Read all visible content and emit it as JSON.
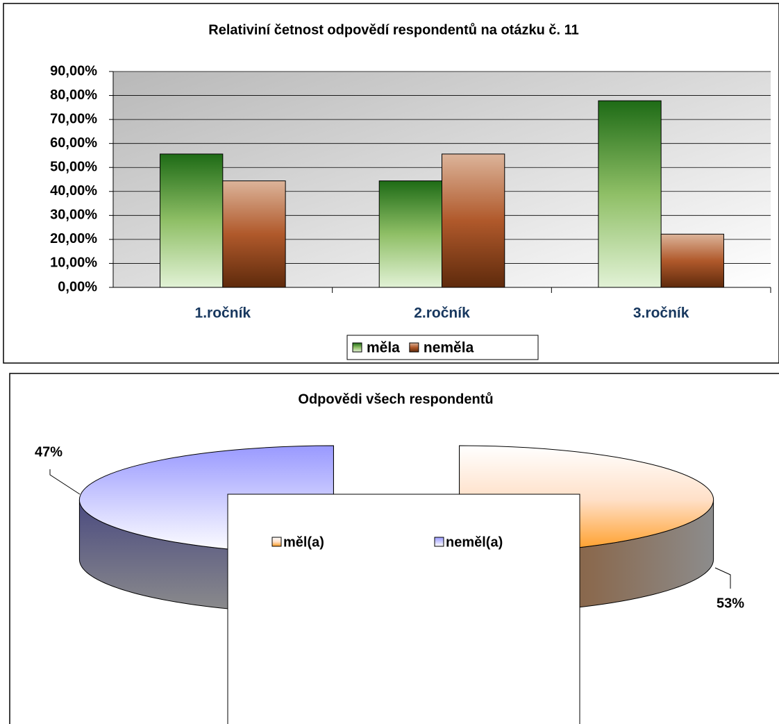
{
  "chart_data": [
    {
      "type": "bar",
      "title": "Relativiní četnost odpovědí respondentů na otázku č. 11",
      "categories": [
        "1.ročník",
        "2.ročník",
        "3.ročník"
      ],
      "series": [
        {
          "name": "měla",
          "color": "#2e7d22",
          "values": [
            55.6,
            44.4,
            77.8
          ]
        },
        {
          "name": "neměla",
          "color": "#a0522d",
          "values": [
            44.4,
            55.6,
            22.2
          ]
        }
      ],
      "ylim": [
        0,
        90
      ],
      "yticks": [
        {
          "value": 0,
          "label": "0,00%"
        },
        {
          "value": 10,
          "label": "10,00%"
        },
        {
          "value": 20,
          "label": "20,00%"
        },
        {
          "value": 30,
          "label": "30,00%"
        },
        {
          "value": 40,
          "label": "40,00%"
        },
        {
          "value": 50,
          "label": "50,00%"
        },
        {
          "value": 60,
          "label": "60,00%"
        },
        {
          "value": 70,
          "label": "70,00%"
        },
        {
          "value": 80,
          "label": "80,00%"
        },
        {
          "value": 90,
          "label": "90,00%"
        }
      ],
      "grid": true,
      "legend": "bottom"
    },
    {
      "type": "pie",
      "title": "Odpovědi všech respondentů",
      "categories": [
        "měl(a)",
        "neměl(a)"
      ],
      "values": [
        53,
        47
      ],
      "value_labels": [
        "53%",
        "47%"
      ],
      "colors": [
        "#ff9a2e",
        "#9999ff"
      ],
      "legend": "bottom"
    }
  ]
}
